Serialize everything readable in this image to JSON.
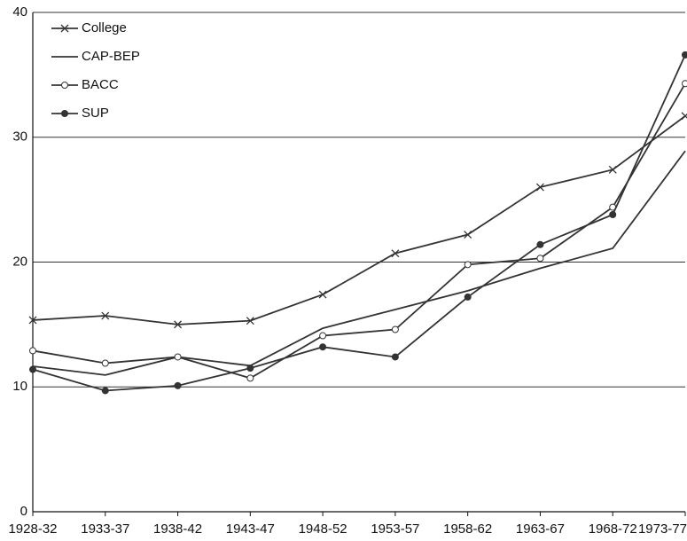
{
  "chart_data": {
    "type": "line",
    "categories": [
      "1928-32",
      "1933-37",
      "1938-42",
      "1943-47",
      "1948-52",
      "1953-57",
      "1958-62",
      "1963-67",
      "1968-72",
      "1973-77"
    ],
    "series": [
      {
        "name": "College",
        "color": "#333333",
        "marker": "x",
        "values": [
          15.35,
          15.7,
          15.0,
          15.3,
          17.4,
          20.7,
          22.2,
          26.0,
          27.4,
          31.7
        ]
      },
      {
        "name": "CAP-BEP",
        "color": "#333333",
        "marker": "none",
        "values": [
          11.65,
          10.95,
          12.4,
          11.7,
          14.7,
          16.2,
          17.7,
          19.5,
          21.1,
          28.9
        ]
      },
      {
        "name": "BACC",
        "color": "#333333",
        "marker": "open-circle",
        "values": [
          12.9,
          11.9,
          12.4,
          10.7,
          14.1,
          14.6,
          19.8,
          20.3,
          24.4,
          34.3
        ]
      },
      {
        "name": "SUP",
        "color": "#333333",
        "marker": "filled-circle",
        "values": [
          11.4,
          9.7,
          10.1,
          11.5,
          13.2,
          12.4,
          17.2,
          21.4,
          23.8,
          36.6
        ]
      }
    ],
    "ylim": [
      0,
      40
    ],
    "yticks": [
      0,
      10,
      20,
      30,
      40
    ],
    "grid": true,
    "legend": "top-left"
  }
}
